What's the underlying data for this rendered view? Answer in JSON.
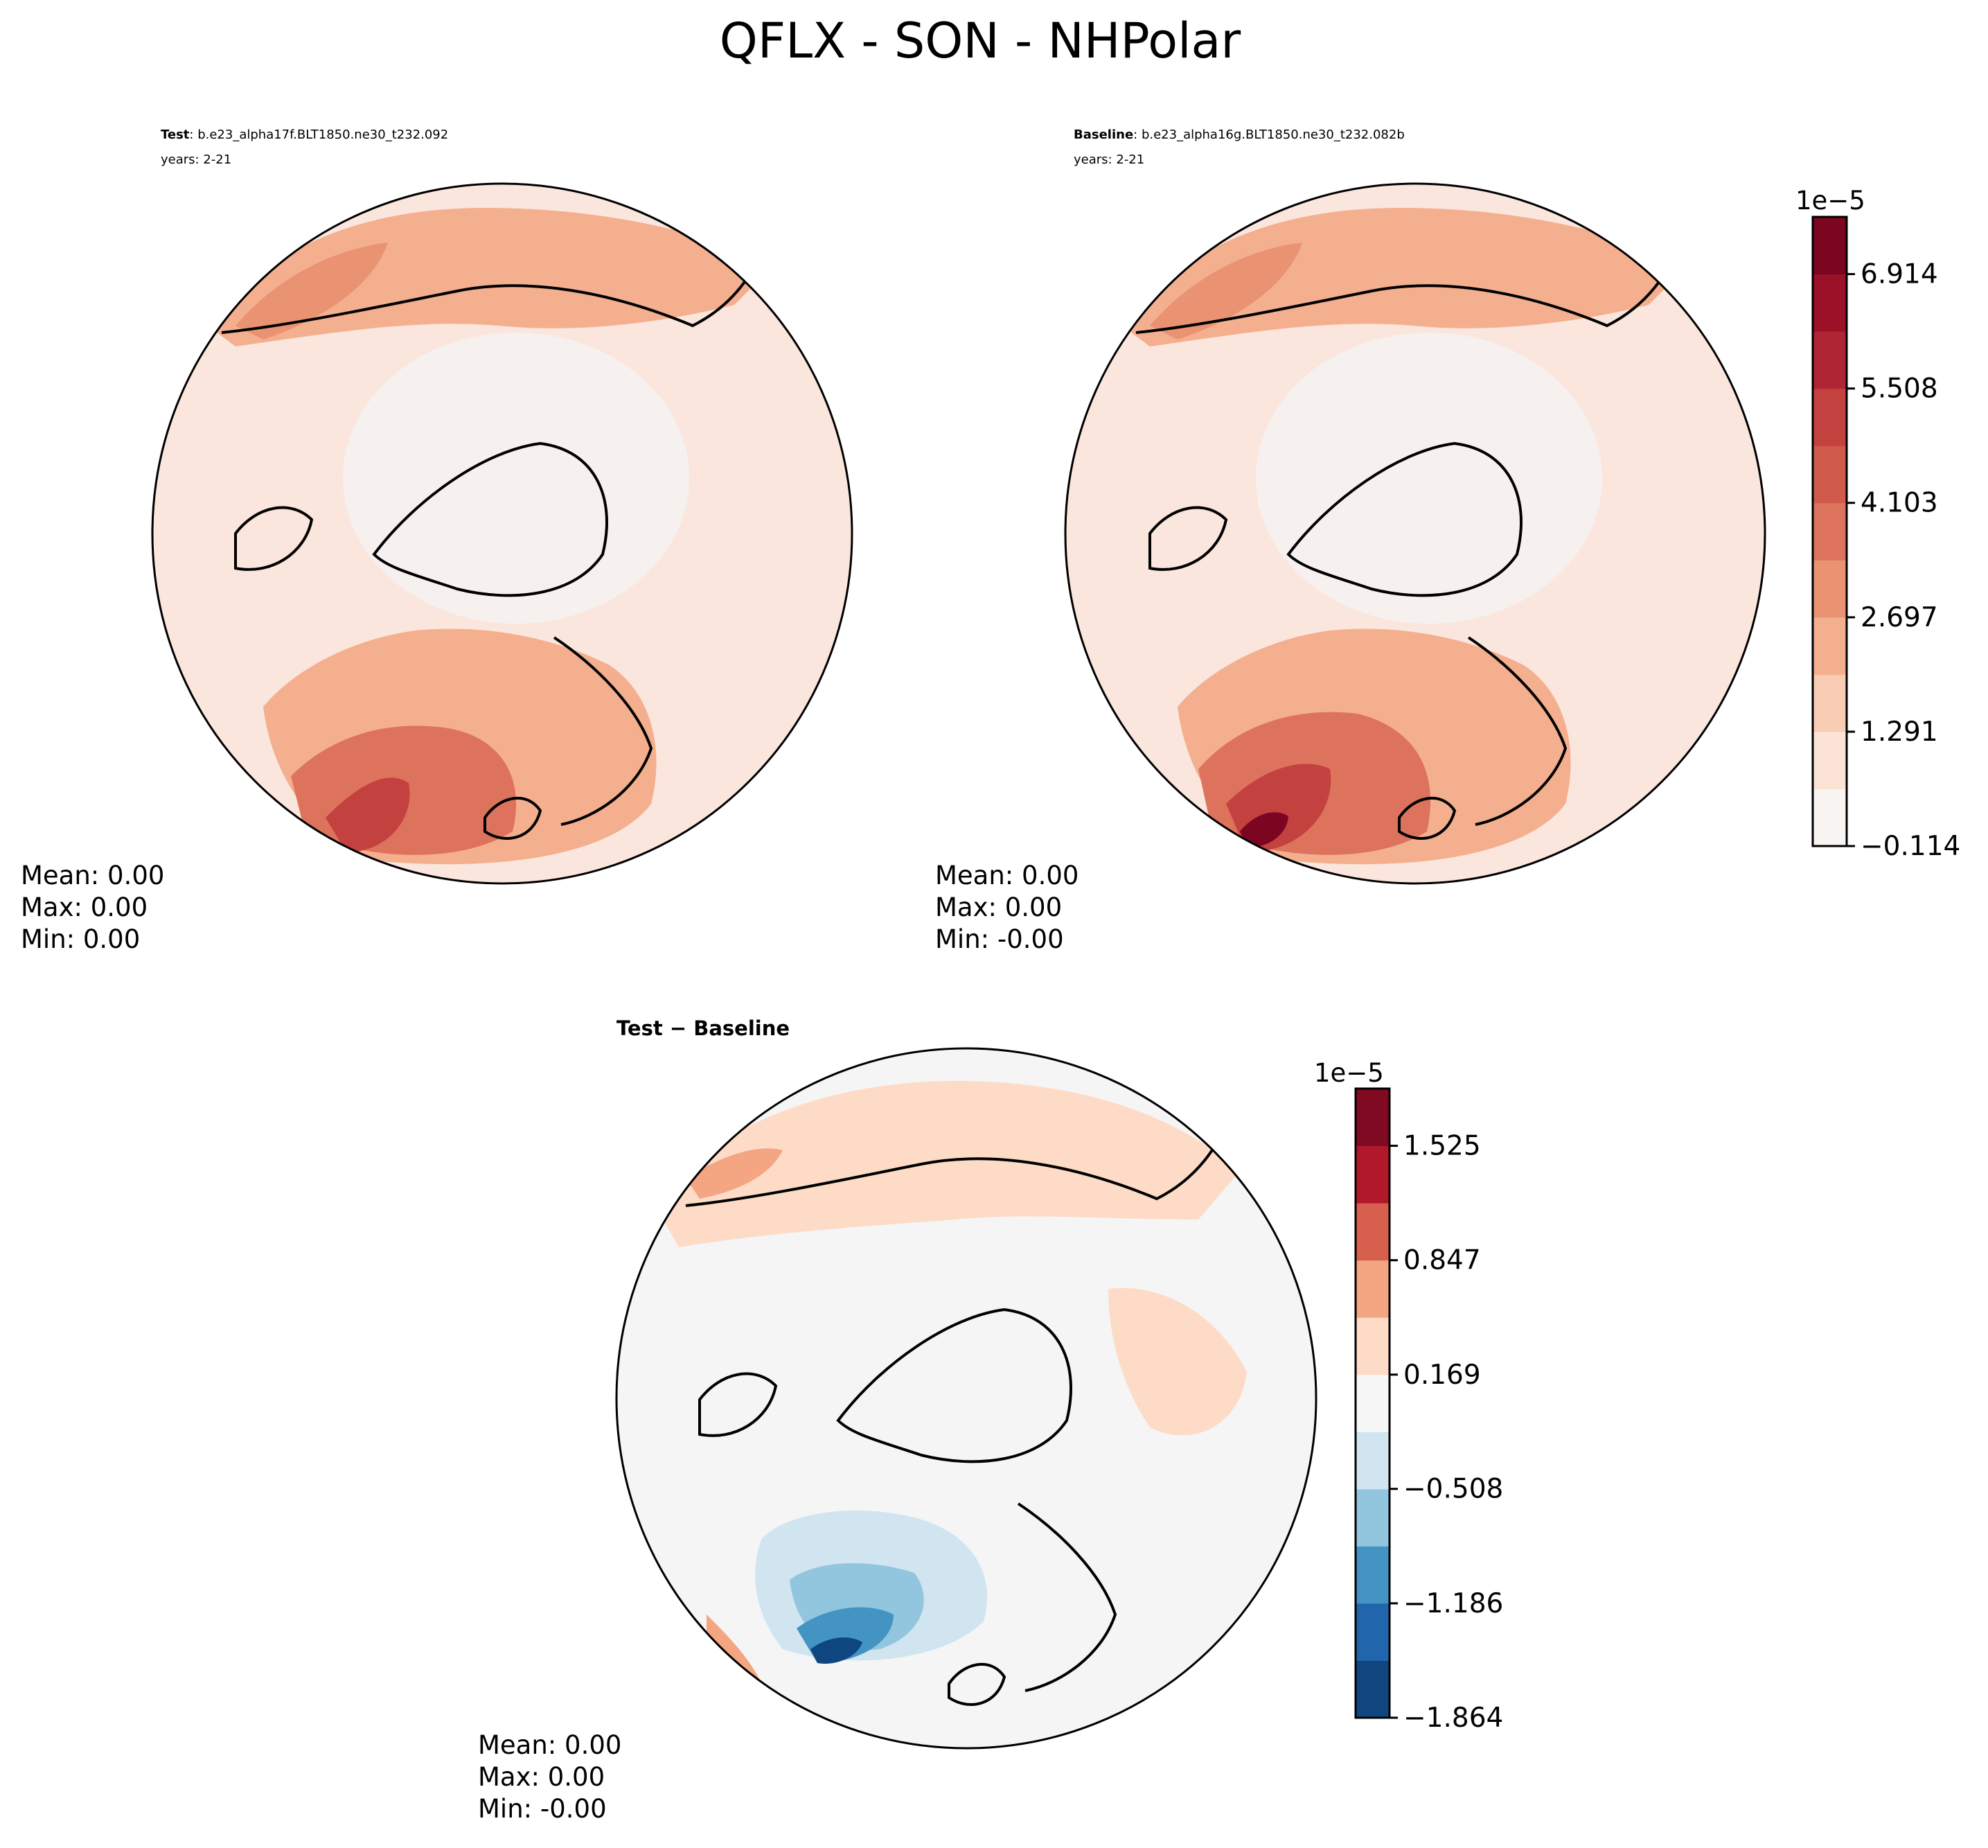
{
  "figure": {
    "title": "QFLX - SON - NHPolar"
  },
  "panels": [
    {
      "id": "test",
      "label_bold": "Test",
      "label_rest": ": b.e23_alpha17f.BLT1850.ne30_t232.092",
      "years": "years: 2-21",
      "stats": {
        "mean": "Mean:  0.00",
        "max": "Max:  0.00",
        "min": "Min:  0.00"
      },
      "fill": {
        "base": "#fae6dd",
        "arctic": "#f6f1ef"
      }
    },
    {
      "id": "baseline",
      "label_bold": "Baseline",
      "label_rest": ": b.e23_alpha16g.BLT1850.ne30_t232.082b",
      "years": "years: 2-21",
      "stats": {
        "mean": "Mean:  0.00",
        "max": "Max:  0.00",
        "min": "Min: -0.00"
      },
      "fill": {
        "base": "#fae6dd",
        "arctic": "#f6f1ef"
      }
    },
    {
      "id": "diff",
      "label_bold": "Test − Baseline",
      "label_rest": "",
      "years": "",
      "stats": {
        "mean": "Mean:  0.00",
        "max": "Max:  0.00",
        "min": "Min: -0.00"
      },
      "fill": {
        "base": "#f5f5f5",
        "arctic": "#f5f5f5"
      }
    }
  ],
  "colorbars": [
    {
      "id": "main",
      "exponent": "1e−5",
      "min": -0.114,
      "max": 7.617,
      "tick_values": [
        -0.114,
        1.291,
        2.697,
        4.103,
        5.508,
        6.914
      ],
      "tick_labels": [
        "−0.114",
        "1.291",
        "2.697",
        "4.103",
        "5.508",
        "6.914"
      ],
      "colors": [
        "#f7f4f2",
        "#fbe3d6",
        "#f9ccb4",
        "#f4af8f",
        "#ea9373",
        "#dd735d",
        "#d05b4c",
        "#c3413f",
        "#b02534",
        "#9a1128",
        "#7c0621"
      ]
    },
    {
      "id": "diff",
      "exponent": "1e−5",
      "min": -1.864,
      "max": 1.864,
      "tick_values": [
        -1.864,
        -1.186,
        -0.508,
        0.169,
        0.847,
        1.525
      ],
      "tick_labels": [
        "−1.864",
        "−1.186",
        "−0.508",
        "0.169",
        "0.847",
        "1.525"
      ],
      "colors": [
        "#0f467f",
        "#2166ac",
        "#4393c3",
        "#92c5de",
        "#d1e5f0",
        "#f7f7f7",
        "#fddbc7",
        "#f4a582",
        "#d6604d",
        "#b2182b",
        "#7f0a21"
      ]
    }
  ],
  "colors": {
    "coast": "#000000",
    "frame": "#000000"
  }
}
